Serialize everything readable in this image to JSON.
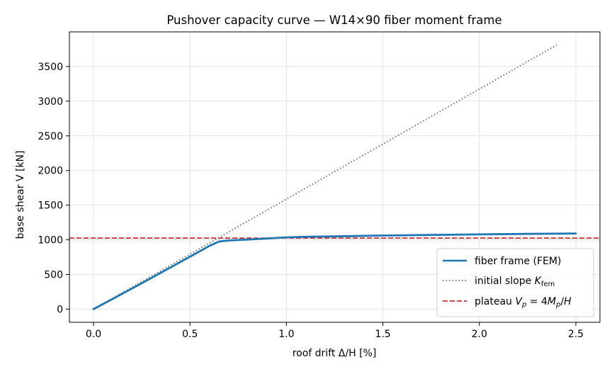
{
  "chart_data": {
    "type": "line",
    "title": "Pushover capacity curve — W14×90 fiber moment frame",
    "xlabel": "roof drift  Δ/H  [%]",
    "ylabel": "base shear  V  [kN]",
    "xlim": [
      -0.125,
      2.625
    ],
    "ylim": [
      -190,
      4000
    ],
    "xticks": [
      0.0,
      0.5,
      1.0,
      1.5,
      2.0,
      2.5
    ],
    "xtick_labels": [
      "0.0",
      "0.5",
      "1.0",
      "1.5",
      "2.0",
      "2.5"
    ],
    "yticks": [
      0,
      500,
      1000,
      1500,
      2000,
      2500,
      3000,
      3500
    ],
    "ytick_labels": [
      "0",
      "500",
      "1000",
      "1500",
      "2000",
      "2500",
      "3000",
      "3500"
    ],
    "grid": true,
    "legend_position": "lower-right",
    "series": [
      {
        "name": "fiber frame (FEM)",
        "style": "solid",
        "color": "#1f77b4",
        "x": [
          0.0,
          0.1,
          0.2,
          0.3,
          0.4,
          0.5,
          0.55,
          0.6,
          0.65,
          0.7,
          0.8,
          0.9,
          1.0,
          1.1,
          1.25,
          1.5,
          1.75,
          2.0,
          2.25,
          2.5
        ],
        "y": [
          0,
          148,
          298,
          450,
          603,
          756,
          833,
          912,
          975,
          990,
          1004,
          1020,
          1035,
          1043,
          1050,
          1062,
          1070,
          1078,
          1085,
          1092
        ]
      },
      {
        "name": "initial slope K_fem",
        "style": "dotted",
        "color": "#666666",
        "x": [
          0.0,
          2.4
        ],
        "y": [
          0,
          3810
        ]
      },
      {
        "name": "plateau V_p = 4M_p/H",
        "style": "dashed",
        "color": "#d62728",
        "y_constant": 1025
      }
    ]
  }
}
